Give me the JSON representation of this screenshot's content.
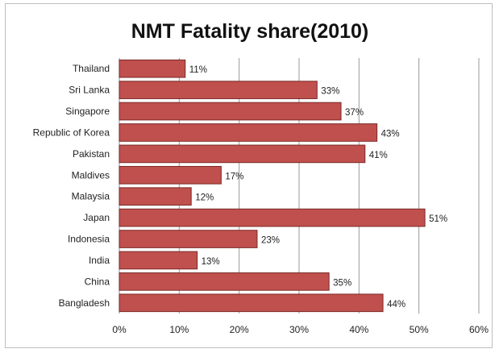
{
  "chart_data": {
    "type": "bar",
    "orientation": "horizontal",
    "title": "NMT Fatality share(2010)",
    "categories": [
      "Thailand",
      "Sri Lanka",
      "Singapore",
      "Republic of Korea",
      "Pakistan",
      "Maldives",
      "Malaysia",
      "Japan",
      "Indonesia",
      "India",
      "China",
      "Bangladesh"
    ],
    "values": [
      11,
      33,
      37,
      43,
      41,
      17,
      12,
      51,
      23,
      13,
      35,
      44
    ],
    "value_labels": [
      "11%",
      "33%",
      "37%",
      "43%",
      "41%",
      "17%",
      "12%",
      "51%",
      "23%",
      "13%",
      "35%",
      "44%"
    ],
    "xlim": [
      0,
      60
    ],
    "x_ticks": [
      0,
      10,
      20,
      30,
      40,
      50,
      60
    ],
    "x_tick_labels": [
      "0%",
      "10%",
      "20%",
      "30%",
      "40%",
      "50%",
      "60%"
    ],
    "grid": "vertical",
    "legend": "none",
    "bar_color": "#c0504d",
    "bar_edge_color": "#7a2a28"
  }
}
